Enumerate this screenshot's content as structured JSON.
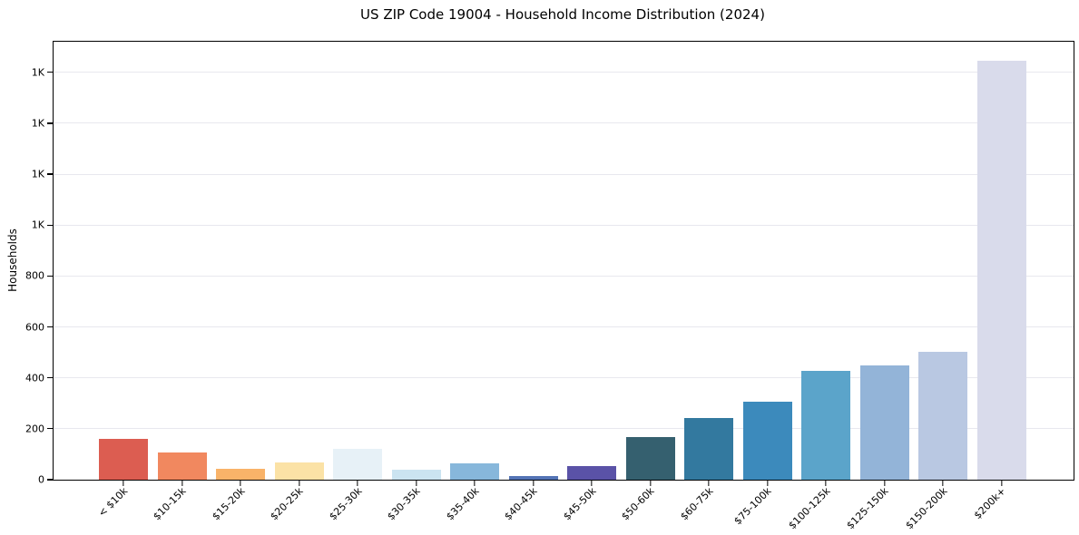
{
  "chart_data": {
    "type": "bar",
    "title": "US ZIP Code 19004 - Household Income Distribution (2024)",
    "ylabel": "Households",
    "xlabel": "",
    "categories": [
      "< $10k",
      "$10-15k",
      "$15-20k",
      "$20-25k",
      "$25-30k",
      "$30-35k",
      "$35-40k",
      "$40-45k",
      "$45-50k",
      "$50-60k",
      "$60-75k",
      "$75-100k",
      "$100-125k",
      "$125-150k",
      "$150-200k",
      "$200k+"
    ],
    "values": [
      162,
      106,
      43,
      67,
      121,
      38,
      63,
      14,
      52,
      166,
      243,
      308,
      426,
      448,
      502,
      1645
    ],
    "bar_colors": [
      "#dc5d51",
      "#f1885f",
      "#f9b369",
      "#fbe2a6",
      "#e7f1f7",
      "#cbe4f1",
      "#87b7db",
      "#5474b5",
      "#5a52a7",
      "#35606f",
      "#33799f",
      "#3c8abc",
      "#5ba4ca",
      "#93b4d8",
      "#b9c8e2",
      "#d9dbeb"
    ],
    "ylim": [
      0,
      1720
    ],
    "yticks": [
      {
        "value": 0,
        "label": "0"
      },
      {
        "value": 200,
        "label": "200"
      },
      {
        "value": 400,
        "label": "400"
      },
      {
        "value": 600,
        "label": "600"
      },
      {
        "value": 800,
        "label": "800"
      },
      {
        "value": 1000,
        "label": "1K"
      },
      {
        "value": 1200,
        "label": "1K"
      },
      {
        "value": 1400,
        "label": "1K"
      },
      {
        "value": 1600,
        "label": "1K"
      }
    ],
    "grid": "horizontal",
    "gridline_color": "#e8e8ee",
    "axis_color": "#000000",
    "background": "#ffffff",
    "legend": null
  }
}
